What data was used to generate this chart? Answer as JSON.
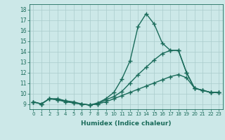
{
  "xlabel": "Humidex (Indice chaleur)",
  "xlim": [
    -0.5,
    23.5
  ],
  "ylim": [
    8.5,
    18.5
  ],
  "xticks": [
    0,
    1,
    2,
    3,
    4,
    5,
    6,
    7,
    8,
    9,
    10,
    11,
    12,
    13,
    14,
    15,
    16,
    17,
    18,
    19,
    20,
    21,
    22,
    23
  ],
  "yticks": [
    9,
    10,
    11,
    12,
    13,
    14,
    15,
    16,
    17,
    18
  ],
  "bg_color": "#cce8e8",
  "grid_color": "#aacccc",
  "line_color": "#1a6b5a",
  "line_width": 1.0,
  "marker": "+",
  "marker_size": 4,
  "marker_edge_width": 1.0,
  "lines": [
    [
      9.2,
      9.0,
      9.5,
      9.5,
      9.3,
      9.2,
      9.0,
      8.9,
      9.1,
      9.5,
      10.1,
      11.4,
      13.1,
      16.4,
      17.6,
      16.6,
      14.8,
      14.1,
      14.1,
      12.0,
      10.5,
      10.3,
      10.1,
      10.1
    ],
    [
      9.2,
      9.0,
      9.5,
      9.4,
      9.2,
      9.1,
      9.0,
      8.9,
      9.0,
      9.4,
      9.7,
      10.2,
      11.0,
      11.8,
      12.5,
      13.2,
      13.8,
      14.1,
      14.1,
      12.0,
      10.5,
      10.3,
      10.1,
      10.1
    ],
    [
      9.2,
      9.0,
      9.5,
      9.4,
      9.3,
      9.1,
      9.0,
      8.9,
      9.0,
      9.2,
      9.5,
      9.8,
      10.1,
      10.4,
      10.7,
      11.0,
      11.3,
      11.6,
      11.8,
      11.5,
      10.5,
      10.3,
      10.1,
      10.1
    ]
  ]
}
